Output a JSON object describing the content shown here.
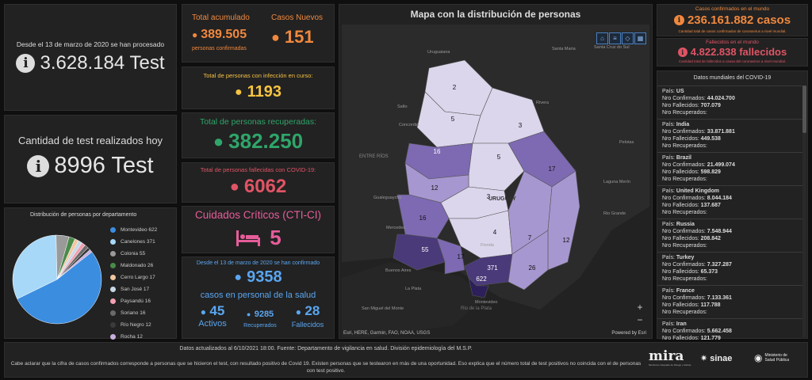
{
  "left": {
    "tests_intro": "Desde el 13 de marzo de 2020 se han procesado",
    "tests_total": "3.628.184 Test",
    "today_label": "Cantidad de test realizados hoy",
    "today_value": "8996 Test",
    "pie_title": "Distribución de personas por departamento",
    "pie_data": [
      {
        "label": "Montevideo",
        "value": 622,
        "color": "#3b8de0"
      },
      {
        "label": "Canelones",
        "value": 371,
        "color": "#a8d8f8"
      },
      {
        "label": "Colonia",
        "value": 55,
        "color": "#9a9a9a"
      },
      {
        "label": "Maldonado",
        "value": 26,
        "color": "#4a8a4a"
      },
      {
        "label": "Cerro Largo",
        "value": 17,
        "color": "#f2c7a0"
      },
      {
        "label": "San José",
        "value": 17,
        "color": "#c8d8e8"
      },
      {
        "label": "Paysandú",
        "value": 16,
        "color": "#f2a0b0"
      },
      {
        "label": "Soriano",
        "value": 16,
        "color": "#6a6a6a"
      },
      {
        "label": "Río Negro",
        "value": 12,
        "color": "#3a3a3a"
      },
      {
        "label": "Rocha",
        "value": 12,
        "color": "#c9b0e0"
      }
    ]
  },
  "stats": {
    "total_acum_label": "Total acumulado",
    "total_acum_value": "389.505",
    "total_acum_sub": "personas confirmadas",
    "casos_nuevos_label": "Casos Nuevos",
    "casos_nuevos_value": "151",
    "infeccion_label": "Total de personas con infección en curso:",
    "infeccion_value": "1193",
    "recuperadas_label": "Total de personas recuperadas:",
    "recuperadas_value": "382.250",
    "fallecidas_label": "Total de personas fallecidas con COVID-19:",
    "fallecidas_value": "6062",
    "cti_label": "Cuidados Críticos (CTI-CI)",
    "cti_value": "5",
    "salud_intro": "Desde el 13 de marzo de 2020 se han confirmado",
    "salud_value": "9358",
    "salud_sub": "casos en personal de la salud",
    "activos_value": "45",
    "activos_label": "Activos",
    "recuperados_value": "9285",
    "recuperados_label": "Recuperados",
    "fallecidos_value": "28",
    "fallecidos_label": "Fallecidos"
  },
  "map": {
    "title": "Mapa con la distribución de personas",
    "attribution": "Esri, HERE, Garmin, FAO, NOAA, USGS",
    "powered": "Powered by Esri",
    "country_label": "URUGUAY",
    "entre_rios": "ENTRE\nRÍOS",
    "places": [
      "Uruguaiana",
      "Santa Maria",
      "Santa Cruz do Sul",
      "Pelotas",
      "Concordia",
      "Gualeguaychú",
      "Buenos Aires",
      "La Plata",
      "San Miguel del Monte",
      "Rio Grande",
      "Laguna Merín",
      "Mercedes",
      "Salto",
      "Montevideo",
      "Florida",
      "Rivera"
    ],
    "rio_label": "Rio de la Plata",
    "dept_values": [
      "2",
      "5",
      "3",
      "16",
      "5",
      "17",
      "12",
      "3",
      "16",
      "4",
      "7",
      "12",
      "55",
      "17",
      "371",
      "26",
      "622"
    ],
    "zoom_in": "+",
    "zoom_out": "−"
  },
  "world": {
    "confirmados_label": "Casos confirmados en el mundo",
    "confirmados_value": "236.161.882 casos",
    "confirmados_sub": "Cantidad total de casos confirmados de coronavirus a nivel mundial.",
    "fallecidos_label": "Fallecidos en el mundo",
    "fallecidos_value": "4.822.838 fallecidos",
    "fallecidos_sub": "Cantidad total de fallecidos a causa del coronavirus a nivel mundial.",
    "list_title": "Datos mundiales del COVID-19",
    "pais_prefix": "País:",
    "conf_prefix": "Nro Confirmados:",
    "fall_prefix": "Nro Fallecidos:",
    "rec_prefix": "Nro Recuperados:",
    "countries": [
      {
        "name": "US",
        "conf": "44.024.700",
        "fall": "707.079"
      },
      {
        "name": "India",
        "conf": "33.871.881",
        "fall": "449.538"
      },
      {
        "name": "Brazil",
        "conf": "21.499.074",
        "fall": "598.829"
      },
      {
        "name": "United Kingdom",
        "conf": "8.044.184",
        "fall": "137.687"
      },
      {
        "name": "Russia",
        "conf": "7.548.944",
        "fall": "208.842"
      },
      {
        "name": "Turkey",
        "conf": "7.327.287",
        "fall": "65.373"
      },
      {
        "name": "France",
        "conf": "7.133.361",
        "fall": "117.788"
      },
      {
        "name": "Iran",
        "conf": "5.662.458",
        "fall": "121.779"
      }
    ]
  },
  "footer": {
    "line1": "Datos actualizados al 6/10/2021 18:00. Fuente: Departamento de vigilancia en salud. División epidemiología del M.S.P.",
    "line2": "Cabe aclarar que la cifra de casos confirmados corresponde a personas que se hicieron el test, con resultado positivo de Covid 19. Existen personas que se testearon en más de una oportunidad. Eso explica que el número total de test positivos no coincida con el de personas con test positivo.",
    "logo1": "mira",
    "logo1_sub": "Monitoreo Integrado de Riesgo y Alertas",
    "logo2": "sinae",
    "logo3": "Ministerio de Salud Pública"
  }
}
